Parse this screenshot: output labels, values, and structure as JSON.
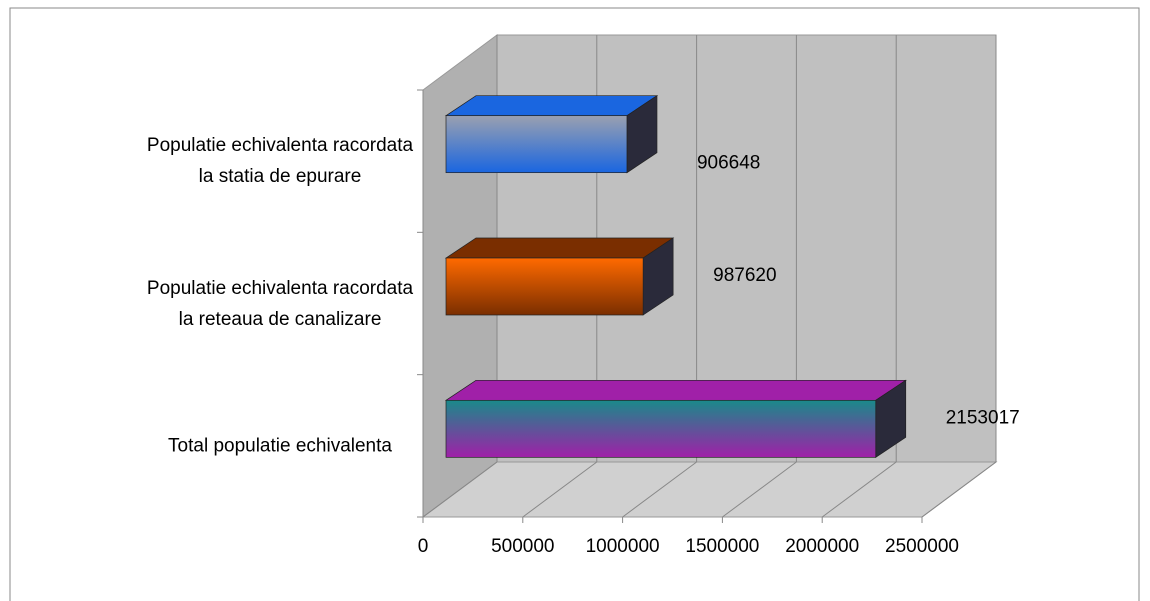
{
  "chart_data": {
    "type": "bar3d",
    "orientation": "horizontal",
    "categories": [
      "Populatie echivalenta racordata la statia de epurare",
      "Populatie echivalenta racordata la reteaua de canalizare",
      "Total populatie echivalenta"
    ],
    "values": [
      906648,
      987620,
      2153017
    ],
    "colors": [
      [
        "#9aa0b0",
        "#1a66e0"
      ],
      [
        "#ff6a00",
        "#7a2e00"
      ],
      [
        "#1a8a8a",
        "#a020a8"
      ]
    ],
    "xlim": [
      0,
      2500000
    ],
    "xticks": [
      0,
      500000,
      1000000,
      1500000,
      2000000,
      2500000
    ],
    "grid": true
  }
}
